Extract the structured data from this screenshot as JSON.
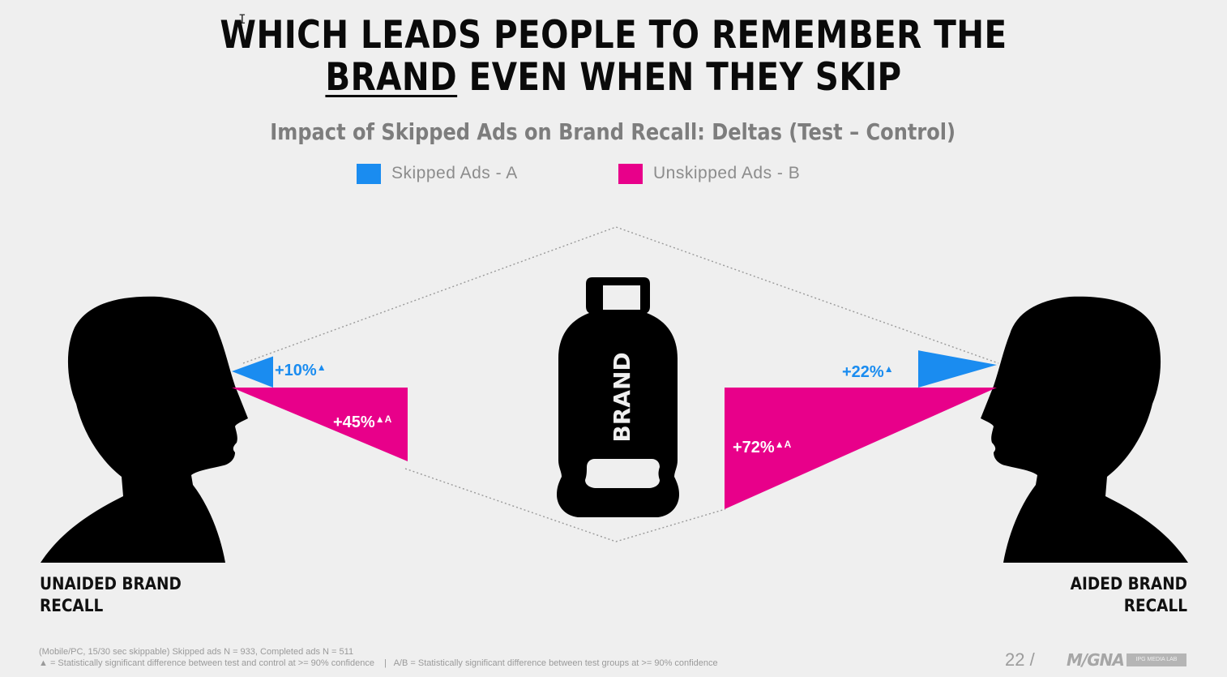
{
  "title": {
    "line1": "WHICH LEADS PEOPLE TO REMEMBER THE",
    "line2_underlined": "BRAND",
    "line2_rest": " EVEN WHEN THEY SKIP"
  },
  "colors": {
    "skipped": "#1a8cf0",
    "unskipped": "#e8008a",
    "background": "#efefef",
    "silhouette": "#000000"
  },
  "chart_data": {
    "type": "bar",
    "title": "Impact of Skipped Ads on Brand Recall:  Deltas (Test – Control)",
    "categories": [
      "UNAIDED BRAND RECALL",
      "AIDED BRAND RECALL"
    ],
    "series": [
      {
        "name": "Skipped Ads - A",
        "values": [
          10,
          22
        ],
        "labels": [
          "+10%",
          "+22%"
        ],
        "markers": [
          "▲",
          "▲"
        ]
      },
      {
        "name": "Unskipped Ads - B",
        "values": [
          45,
          72
        ],
        "labels": [
          "+45%",
          "+72%"
        ],
        "markers": [
          "▲A",
          "▲A"
        ]
      }
    ],
    "unit": "%",
    "legend": "top-center"
  },
  "center_icon": {
    "name": "bottle-icon",
    "text": "BRAND"
  },
  "labels": {
    "left_line1": "UNAIDED BRAND",
    "left_line2": "RECALL",
    "right_line1": "AIDED BRAND",
    "right_line2": "RECALL"
  },
  "footnotes": {
    "line1": "(Mobile/PC, 15/30 sec skippable)  Skipped ads N = 933, Completed ads N = 511",
    "line2": "▲ = Statistically significant difference between test and control at >= 90% confidence    |   A/B = Statistically significant difference between test groups at >= 90% confidence"
  },
  "page_number": "22 /",
  "logo_text": "M/GNA",
  "lab_badge": "IPG MEDIA LAB",
  "cursor_glyph": "I"
}
